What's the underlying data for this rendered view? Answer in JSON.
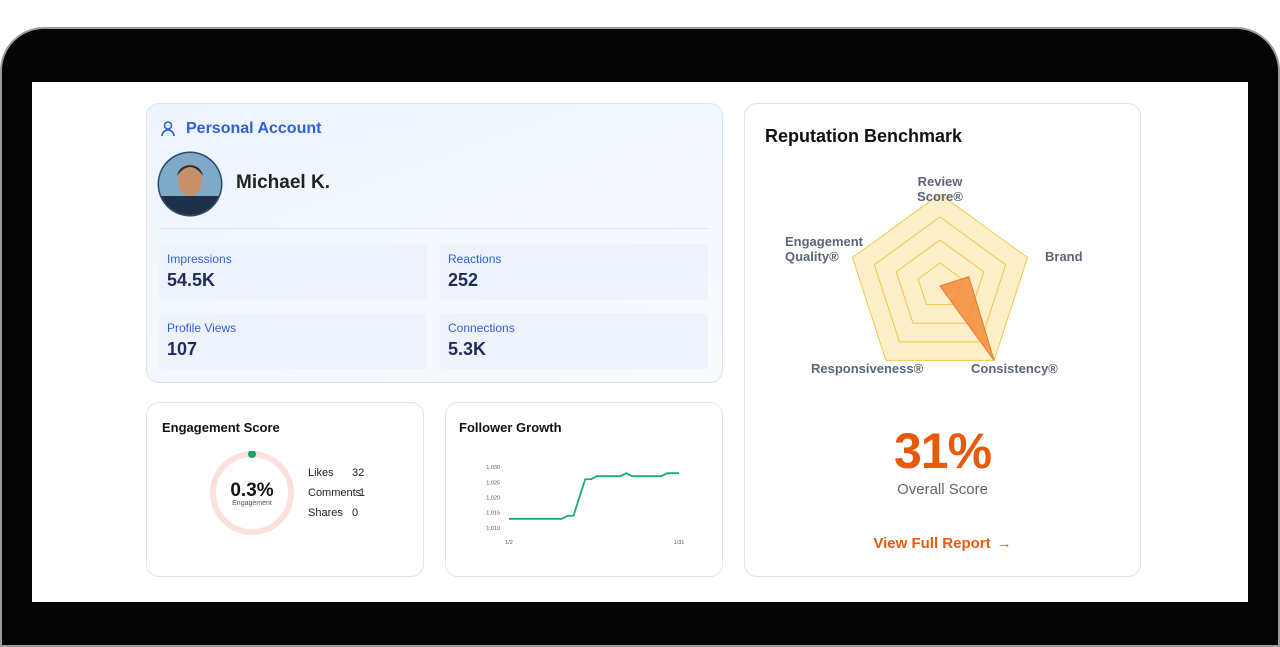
{
  "account": {
    "title": "Personal Account",
    "name": "Michael K.",
    "stats": [
      {
        "label": "Impressions",
        "value": "54.5K"
      },
      {
        "label": "Reactions",
        "value": "252"
      },
      {
        "label": "Profile Views",
        "value": "107"
      },
      {
        "label": "Connections",
        "value": "5.3K"
      }
    ]
  },
  "engagement": {
    "title": "Engagement Score",
    "value": "0.3%",
    "caption": "Engagement",
    "rows": [
      {
        "label": "Likes",
        "value": 32
      },
      {
        "label": "Comments",
        "value": 1
      },
      {
        "label": "Shares",
        "value": 0
      }
    ]
  },
  "follower_growth": {
    "title": "Follower Growth",
    "chart_data": {
      "type": "line",
      "categories": [
        "1/2",
        null,
        null,
        null,
        null,
        null,
        null,
        null,
        null,
        null,
        null,
        null,
        null,
        null,
        null,
        null,
        null,
        null,
        null,
        null,
        null,
        null,
        null,
        null,
        null,
        null,
        null,
        null,
        null,
        "1/31"
      ],
      "values": [
        1013,
        1013,
        1013,
        1013,
        1013,
        1013,
        1013,
        1013,
        1013,
        1013,
        1014,
        1014,
        1020,
        1026,
        1026,
        1027,
        1027,
        1027,
        1027,
        1027,
        1028,
        1027,
        1027,
        1027,
        1027,
        1027,
        1027,
        1028,
        1028,
        1028
      ],
      "color": "#1aab6d",
      "ylim": [
        1008,
        1032
      ],
      "yticks": [
        {
          "value": 1010,
          "label": "1,010"
        },
        {
          "value": 1015,
          "label": "1,015"
        },
        {
          "value": 1020,
          "label": "1,020"
        },
        {
          "value": 1025,
          "label": "1,025"
        },
        {
          "value": 1030,
          "label": "1,030"
        }
      ]
    }
  },
  "benchmark": {
    "title": "Reputation Benchmark",
    "chart_data": {
      "type": "radar",
      "categories": [
        "Review Score®",
        "Brand",
        "Consistency®",
        "Responsiveness®",
        "Engagement Quality®"
      ],
      "values": [
        0,
        33,
        100,
        0,
        0
      ],
      "color": "#f58a3c",
      "rlim": [
        0,
        100
      ],
      "rticks": [
        25,
        50,
        75,
        100
      ]
    },
    "score": "31%",
    "score_label": "Overall Score",
    "link": "View Full Report"
  }
}
